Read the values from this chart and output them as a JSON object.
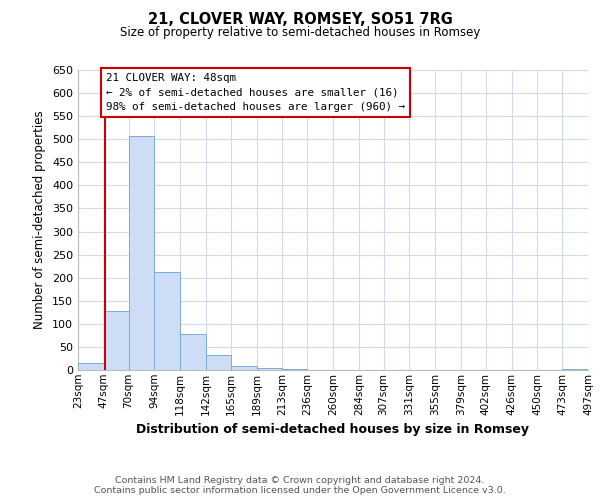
{
  "title": "21, CLOVER WAY, ROMSEY, SO51 7RG",
  "subtitle": "Size of property relative to semi-detached houses in Romsey",
  "xlabel": "Distribution of semi-detached houses by size in Romsey",
  "ylabel": "Number of semi-detached properties",
  "bar_color": "#ccddf5",
  "bar_edge_color": "#7aadd6",
  "property_line_color": "#cc0000",
  "property_sqm": 48,
  "bin_edges": [
    23,
    47,
    70,
    94,
    118,
    142,
    165,
    189,
    213,
    236,
    260,
    284,
    307,
    331,
    355,
    379,
    402,
    426,
    450,
    473,
    497
  ],
  "bin_labels": [
    "23sqm",
    "47sqm",
    "70sqm",
    "94sqm",
    "118sqm",
    "142sqm",
    "165sqm",
    "189sqm",
    "213sqm",
    "236sqm",
    "260sqm",
    "284sqm",
    "307sqm",
    "331sqm",
    "355sqm",
    "379sqm",
    "402sqm",
    "426sqm",
    "450sqm",
    "473sqm",
    "497sqm"
  ],
  "counts": [
    16,
    127,
    508,
    213,
    78,
    33,
    8,
    4,
    2,
    1,
    1,
    0,
    0,
    0,
    0,
    0,
    0,
    0,
    0,
    3
  ],
  "ylim": [
    0,
    650
  ],
  "yticks": [
    0,
    50,
    100,
    150,
    200,
    250,
    300,
    350,
    400,
    450,
    500,
    550,
    600,
    650
  ],
  "annotation_title": "21 CLOVER WAY: 48sqm",
  "annotation_line1": "← 2% of semi-detached houses are smaller (16)",
  "annotation_line2": "98% of semi-detached houses are larger (960) →",
  "footer_line1": "Contains HM Land Registry data © Crown copyright and database right 2024.",
  "footer_line2": "Contains public sector information licensed under the Open Government Licence v3.0.",
  "background_color": "#ffffff",
  "grid_color": "#d0daea"
}
